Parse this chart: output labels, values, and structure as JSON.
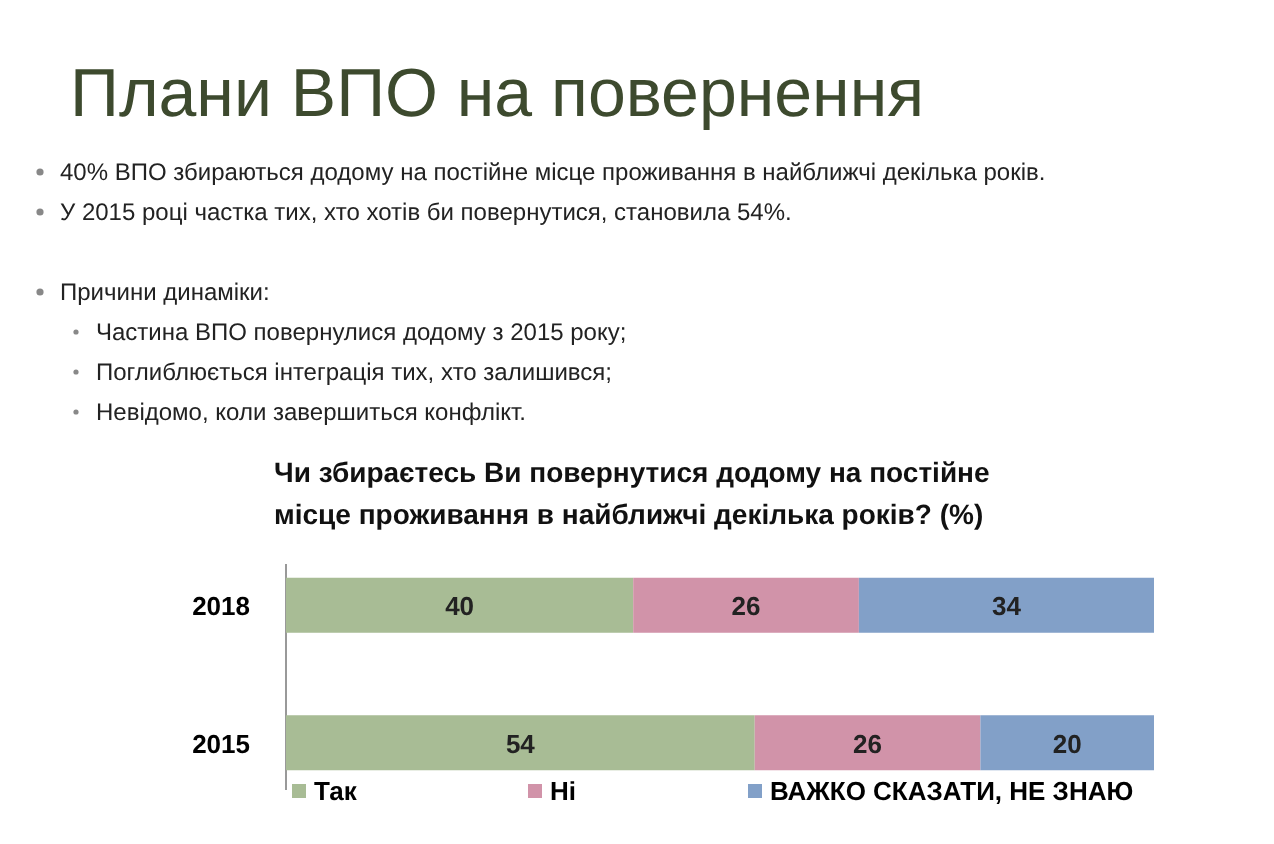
{
  "chart_data": {
    "type": "bar",
    "orientation": "horizontal",
    "stacked": true,
    "title": "Плани ВПО на повернення",
    "subtitle": "Чи збираєтесь Ви повернутися додому на постійне місце проживання в найближчі декілька років? (%)",
    "annotations": [
      "40% ВПО збираються додому на постійне місце проживання в найближчі декілька років.",
      "У 2015 році частка тих, хто хотів би повернутися, становила 54%.",
      "Причини динаміки:",
      "Частина ВПО повернулися додому з 2015 року;",
      "Поглиблюється інтеграція тих, хто залишився;",
      "Невідомо, коли завершиться конфлікт."
    ],
    "categories": [
      "2018",
      "2015"
    ],
    "series": [
      {
        "name": "Так",
        "color": "#a8bc95",
        "values": [
          40,
          54
        ]
      },
      {
        "name": "Ні",
        "color": "#d193a9",
        "values": [
          26,
          26
        ]
      },
      {
        "name": "ВАЖКО СКАЗАТИ, НЕ ЗНАЮ",
        "color": "#82a0c8",
        "values": [
          34,
          20
        ]
      }
    ],
    "data_labels": true,
    "legend": "bottom"
  }
}
